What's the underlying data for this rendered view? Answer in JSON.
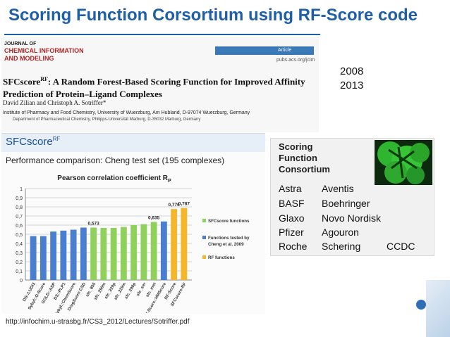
{
  "slide": {
    "title": "Scoring Function Corsortium using RF-Score code",
    "years": [
      "2008",
      "2013"
    ],
    "source_url": "http://infochim.u-strasbg.fr/CS3_2012/Lectures/Sotriffer.pdf"
  },
  "journal": {
    "line1": "JOURNAL OF",
    "line2": "CHEMICAL INFORMATION",
    "line3": "AND MODELING",
    "article_tag": "Article",
    "url": "pubs.acs.org/jcim",
    "paper_title_main": "SFCscore",
    "paper_title_sup": "RF",
    "paper_title_rest": ": A Random Forest-Based Scoring Function for Improved Affinity Prediction of Protein–Ligand Complexes",
    "authors": "David Zilian and Christoph A. Sotriffer*",
    "affiliation": "Institute of Pharmacy and Food Chemistry, University of Wuerzburg, Am Hubland, D-97074 Wuerzburg, Germany",
    "affiliation2": "Department of Pharmaceutical Chemistry, Philipps-Universität Marburg, D-35032 Marburg, Germany"
  },
  "sfc_panel": {
    "logo_main": "SFCscore",
    "logo_sup": "RF",
    "heading": "Performance comparison: Cheng test set (195 complexes)"
  },
  "consortium": {
    "title_lines": [
      {
        "initial": "S",
        "rest": "coring"
      },
      {
        "initial": "F",
        "rest": "unction"
      },
      {
        "initial": "C",
        "rest": "onsortium"
      }
    ],
    "companies": [
      "Astra",
      "Aventis",
      "BASF",
      "Boehringer",
      "Glaxo",
      "Novo Nordisk",
      "Pfizer",
      "Agouron",
      "Roche",
      "Schering",
      "CCDC"
    ]
  },
  "colors": {
    "title_blue": "#1f5fa8",
    "blue_bar": "#4a7fd0",
    "green_bar": "#8fd15a",
    "orange_bar": "#f5b72a"
  },
  "chart_data": {
    "type": "bar",
    "title": "Pearson correlation coefficient R",
    "title_sub": "P",
    "ylim": [
      0,
      1
    ],
    "yticks": [
      "0",
      "0,1",
      "0,2",
      "0,3",
      "0,4",
      "0,5",
      "0,6",
      "0,7",
      "0,8",
      "0,9",
      "1"
    ],
    "grid": true,
    "legend_position": "right",
    "categories": [
      "DS::LUDI3",
      "Sybyl::G-Score",
      "GOLD::ASP",
      "DS::PLP1",
      "Sybyl::ChemScore",
      "DrugScore CSD",
      "sfc_855",
      "sfc_290m",
      "sfc_229p",
      "sfc_229m",
      "sfc_290p",
      "sfc_ser",
      "sfc_met",
      "X-Score::HMScore",
      "RF-Score",
      "SFCscore-RF"
    ],
    "values": [
      0.48,
      0.48,
      0.53,
      0.54,
      0.55,
      0.573,
      0.573,
      0.57,
      0.57,
      0.58,
      0.6,
      0.61,
      0.635,
      0.64,
      0.776,
      0.787
    ],
    "groups": [
      "blue",
      "blue",
      "blue",
      "blue",
      "blue",
      "blue",
      "green",
      "green",
      "green",
      "green",
      "green",
      "green",
      "green",
      "blue",
      "orange",
      "orange"
    ],
    "data_labels": {
      "6": "0,573",
      "12": "0,635",
      "14": "0,776",
      "15": "0,787"
    },
    "series": [
      {
        "name": "SFCscore functions"
      },
      {
        "name": "Functions tested by Cheng et al. 2009"
      },
      {
        "name": "RF functions"
      }
    ]
  }
}
